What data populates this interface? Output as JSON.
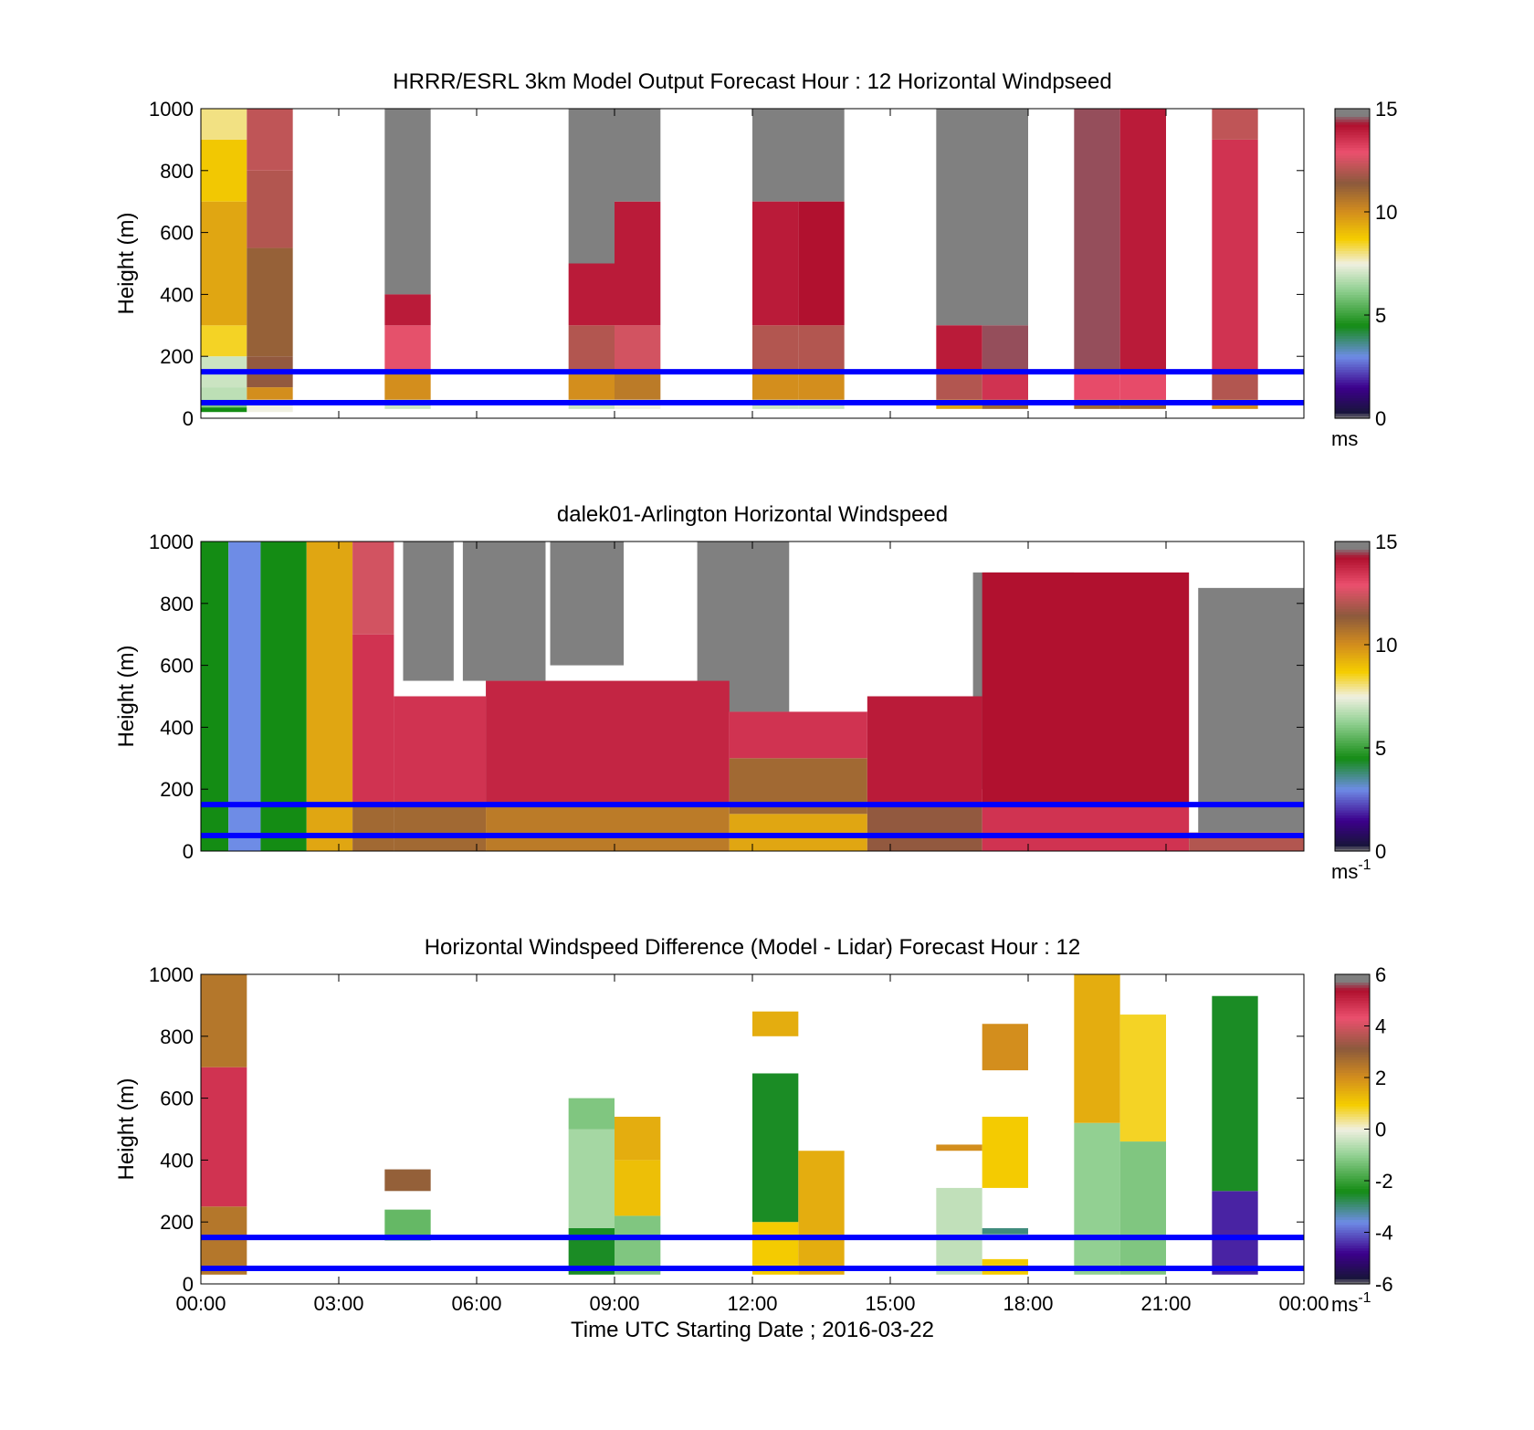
{
  "chart_data": [
    {
      "type": "heatmap",
      "title": "HRRR/ESRL 3km Model Output   Forecast Hour : 12 Horizontal Windpseed",
      "ylabel": "Height (m)",
      "ylim": [
        0,
        1000
      ],
      "yticks": [
        "0",
        "200",
        "400",
        "600",
        "800",
        "1000"
      ],
      "xlim_hours": [
        0,
        24
      ],
      "xtick_hours": [
        0,
        3,
        6,
        9,
        12,
        15,
        18,
        21,
        24
      ],
      "colorbar": {
        "min": 0,
        "max": 15,
        "ticks": [
          "0",
          "5",
          "10",
          "15"
        ],
        "unit": "ms"
      },
      "reference_lines_m": [
        50,
        150
      ],
      "columns": [
        {
          "t0": 0,
          "t1": 1,
          "segments": [
            [
              20,
              35,
              4.5
            ],
            [
              35,
              60,
              6
            ],
            [
              60,
              100,
              6.8
            ],
            [
              100,
              200,
              7
            ],
            [
              200,
              300,
              8.5
            ],
            [
              300,
              700,
              9.5
            ],
            [
              700,
              900,
              8.8
            ],
            [
              900,
              1000,
              8
            ]
          ]
        },
        {
          "t0": 1,
          "t1": 2,
          "segments": [
            [
              20,
              60,
              7.5
            ],
            [
              60,
              100,
              10
            ],
            [
              100,
              200,
              11.5
            ],
            [
              200,
              550,
              11.2
            ],
            [
              550,
              800,
              12
            ],
            [
              800,
              1000,
              12.2
            ]
          ]
        },
        {
          "t0": 4,
          "t1": 5,
          "segments": [
            [
              30,
              60,
              7
            ],
            [
              60,
              150,
              10
            ],
            [
              150,
              300,
              12.8
            ],
            [
              300,
              400,
              14
            ]
          ]
        },
        {
          "t0": 8,
          "t1": 9,
          "segments": [
            [
              30,
              60,
              7
            ],
            [
              60,
              150,
              10
            ],
            [
              150,
              300,
              12
            ],
            [
              300,
              500,
              14
            ]
          ]
        },
        {
          "t0": 9,
          "t1": 10,
          "segments": [
            [
              30,
              60,
              7.5
            ],
            [
              60,
              150,
              10.5
            ],
            [
              150,
              300,
              12.5
            ],
            [
              300,
              700,
              14
            ],
            [
              700,
              1000,
              14.8
            ]
          ]
        },
        {
          "t0": 12,
          "t1": 13,
          "segments": [
            [
              30,
              60,
              7
            ],
            [
              60,
              150,
              10
            ],
            [
              150,
              300,
              12
            ],
            [
              300,
              700,
              14
            ]
          ]
        },
        {
          "t0": 13,
          "t1": 14,
          "segments": [
            [
              30,
              60,
              7
            ],
            [
              60,
              150,
              10
            ],
            [
              150,
              300,
              12
            ],
            [
              300,
              700,
              14.2
            ]
          ]
        },
        {
          "t0": 16,
          "t1": 17,
          "segments": [
            [
              30,
              60,
              9.5
            ],
            [
              60,
              150,
              12
            ],
            [
              150,
              300,
              14
            ]
          ]
        },
        {
          "t0": 17,
          "t1": 18,
          "segments": [
            [
              30,
              60,
              11
            ],
            [
              60,
              150,
              13.5
            ],
            [
              150,
              300,
              14.5
            ]
          ]
        },
        {
          "t0": 19,
          "t1": 20,
          "segments": [
            [
              30,
              60,
              11
            ],
            [
              60,
              150,
              13
            ],
            [
              150,
              1000,
              14.5
            ]
          ]
        },
        {
          "t0": 20,
          "t1": 21,
          "segments": [
            [
              30,
              60,
              11
            ],
            [
              60,
              150,
              13
            ],
            [
              150,
              1000,
              14
            ]
          ]
        },
        {
          "t0": 22,
          "t1": 23,
          "segments": [
            [
              30,
              60,
              10
            ],
            [
              60,
              150,
              12
            ],
            [
              150,
              900,
              13.5
            ],
            [
              900,
              1000,
              12.2
            ]
          ]
        }
      ],
      "missing_above": [
        {
          "t0": 4,
          "t1": 5,
          "from": 400
        },
        {
          "t0": 8,
          "t1": 9,
          "from": 500
        },
        {
          "t0": 12,
          "t1": 14,
          "from": 700
        },
        {
          "t0": 16,
          "t1": 18,
          "from": 300
        }
      ]
    },
    {
      "type": "heatmap",
      "title": "dalek01-Arlington  Horizontal Windspeed",
      "ylabel": "Height (m)",
      "ylim": [
        0,
        1000
      ],
      "yticks": [
        "0",
        "200",
        "400",
        "600",
        "800",
        "1000"
      ],
      "xlim_hours": [
        0,
        24
      ],
      "xtick_hours": [
        0,
        3,
        6,
        9,
        12,
        15,
        18,
        21,
        24
      ],
      "colorbar": {
        "min": 0,
        "max": 15,
        "ticks": [
          "0",
          "5",
          "10",
          "15"
        ],
        "unit": "ms",
        "unit_sup": "-1"
      },
      "reference_lines_m": [
        50,
        150
      ],
      "segments": [
        {
          "t0": 0,
          "t1": 0.6,
          "segments": [
            [
              0,
              1000,
              4.5
            ]
          ]
        },
        {
          "t0": 0.6,
          "t1": 1.3,
          "segments": [
            [
              0,
              1000,
              3
            ]
          ]
        },
        {
          "t0": 1.3,
          "t1": 2.3,
          "segments": [
            [
              0,
              1000,
              4.5
            ]
          ]
        },
        {
          "t0": 2.3,
          "t1": 3.3,
          "segments": [
            [
              0,
              1000,
              9.5
            ]
          ]
        },
        {
          "t0": 3.3,
          "t1": 4.2,
          "segments": [
            [
              0,
              150,
              11
            ],
            [
              150,
              700,
              13.5
            ],
            [
              700,
              1000,
              12.5
            ]
          ]
        },
        {
          "t0": 4.2,
          "t1": 6.2,
          "segments": [
            [
              0,
              150,
              11
            ],
            [
              150,
              500,
              13.5
            ]
          ]
        },
        {
          "t0": 6.2,
          "t1": 11.5,
          "segments": [
            [
              0,
              150,
              10.5
            ],
            [
              150,
              550,
              13.8
            ]
          ]
        },
        {
          "t0": 11.5,
          "t1": 14.5,
          "segments": [
            [
              0,
              120,
              9.5
            ],
            [
              120,
              300,
              11
            ],
            [
              300,
              450,
              13.5
            ]
          ]
        },
        {
          "t0": 14.5,
          "t1": 17,
          "segments": [
            [
              0,
              150,
              11.5
            ],
            [
              150,
              500,
              14
            ]
          ]
        },
        {
          "t0": 17,
          "t1": 21.5,
          "segments": [
            [
              0,
              150,
              13.5
            ],
            [
              150,
              900,
              14.2
            ]
          ]
        },
        {
          "t0": 21.5,
          "t1": 24,
          "segments": [
            [
              0,
              60,
              12
            ]
          ]
        }
      ],
      "missing_regions": [
        {
          "t0": 4.4,
          "t1": 5.5,
          "from": 550,
          "to": 1000
        },
        {
          "t0": 5.7,
          "t1": 7.5,
          "from": 550,
          "to": 1000
        },
        {
          "t0": 7.6,
          "t1": 9.2,
          "from": 600,
          "to": 1000
        },
        {
          "t0": 10.8,
          "t1": 12.8,
          "from": 450,
          "to": 1000
        },
        {
          "t0": 16.8,
          "t1": 19,
          "from": 200,
          "to": 900
        },
        {
          "t0": 21.7,
          "t1": 24,
          "from": 60,
          "to": 850
        }
      ]
    },
    {
      "type": "heatmap",
      "title": "Horizontal Windspeed Difference (Model - Lidar) Forecast Hour : 12",
      "xlabel": "Time UTC  Starting Date ; 2016-03-22",
      "ylabel": "Height (m)",
      "ylim": [
        0,
        1000
      ],
      "yticks": [
        "0",
        "200",
        "400",
        "600",
        "800",
        "1000"
      ],
      "xlim_hours": [
        0,
        24
      ],
      "xtick_hours": [
        0,
        3,
        6,
        9,
        12,
        15,
        18,
        21,
        24
      ],
      "xticklabels": [
        "00:00",
        "03:00",
        "06:00",
        "09:00",
        "12:00",
        "15:00",
        "18:00",
        "21:00",
        "00:00"
      ],
      "colorbar": {
        "min": -6,
        "max": 6,
        "ticks": [
          "-6",
          "-4",
          "-2",
          "0",
          "2",
          "4",
          "6"
        ],
        "unit": "ms",
        "unit_sup": "-1"
      },
      "reference_lines_m": [
        50,
        150
      ],
      "columns": [
        {
          "t0": 0,
          "t1": 1,
          "segments": [
            [
              30,
              250,
              2.5
            ],
            [
              250,
              700,
              4.8
            ],
            [
              700,
              1000,
              2.5
            ]
          ]
        },
        {
          "t0": 4,
          "t1": 5,
          "segments": [
            [
              140,
              240,
              -1.5
            ],
            [
              300,
              370,
              3
            ]
          ]
        },
        {
          "t0": 8,
          "t1": 9,
          "segments": [
            [
              30,
              180,
              -2.5
            ],
            [
              180,
              500,
              -0.8
            ],
            [
              500,
              600,
              -1.2
            ]
          ]
        },
        {
          "t0": 9,
          "t1": 10,
          "segments": [
            [
              30,
              220,
              -1.2
            ],
            [
              220,
              400,
              1.2
            ],
            [
              400,
              540,
              1.5
            ]
          ]
        },
        {
          "t0": 12,
          "t1": 13,
          "segments": [
            [
              30,
              200,
              1
            ],
            [
              200,
              680,
              -2.5
            ],
            [
              800,
              880,
              1.5
            ]
          ]
        },
        {
          "t0": 13,
          "t1": 14,
          "segments": [
            [
              30,
              430,
              1.5
            ]
          ]
        },
        {
          "t0": 16,
          "t1": 17,
          "segments": [
            [
              30,
              310,
              -0.5
            ],
            [
              430,
              450,
              2
            ]
          ]
        },
        {
          "t0": 17,
          "t1": 18,
          "segments": [
            [
              30,
              80,
              1
            ],
            [
              160,
              180,
              -3
            ],
            [
              310,
              540,
              1
            ],
            [
              690,
              840,
              2
            ]
          ]
        },
        {
          "t0": 19,
          "t1": 20,
          "segments": [
            [
              30,
              520,
              -1
            ],
            [
              520,
              1000,
              1.5
            ]
          ]
        },
        {
          "t0": 20,
          "t1": 21,
          "segments": [
            [
              30,
              460,
              -1.2
            ],
            [
              460,
              870,
              0.8
            ]
          ]
        },
        {
          "t0": 22,
          "t1": 23,
          "segments": [
            [
              30,
              300,
              -4.5
            ],
            [
              300,
              930,
              -2.5
            ]
          ]
        }
      ]
    }
  ],
  "overlay": {
    "line_color": "#0000ff",
    "missing_color": "#808080"
  }
}
